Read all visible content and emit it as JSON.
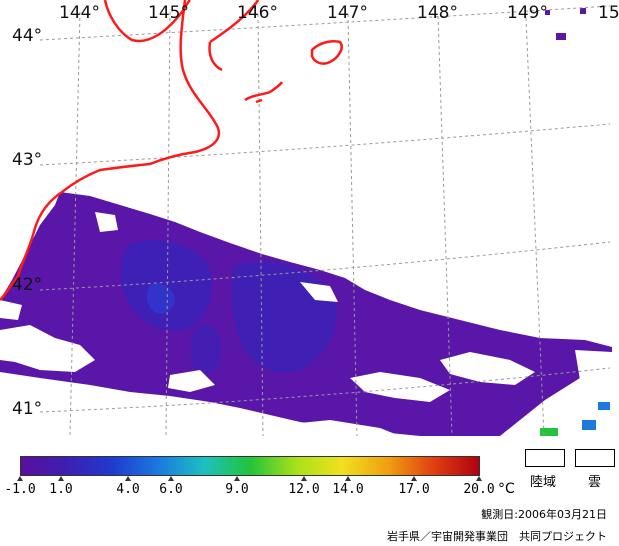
{
  "map": {
    "longitude_labels": [
      "144°",
      "145°",
      "146°",
      "147°",
      "148°",
      "149°",
      "15"
    ],
    "latitude_labels": [
      "44°",
      "43°",
      "42°",
      "41°"
    ],
    "colors": {
      "sst_base": "#5a16a8",
      "sst_deep": "#3a22b8",
      "coastline": "#ff1a1a",
      "grid": "#9a9a9a",
      "cloud": "#ffffff"
    }
  },
  "colorbar": {
    "tick_labels": [
      "-1.0",
      "1.0",
      "4.0",
      "6.0",
      "9.0",
      "12.0",
      "14.0",
      "17.0",
      "20.0"
    ],
    "unit": "°C",
    "gradient_colors": [
      "#5a0f9e",
      "#3d1fb0",
      "#1f3ad0",
      "#1a7ae0",
      "#1cc0c0",
      "#22c43a",
      "#a8e01a",
      "#f0e020",
      "#f0a010",
      "#e04010",
      "#b00010"
    ]
  },
  "legend": {
    "land_label": "陸域",
    "cloud_label": "雲"
  },
  "footer": {
    "observation_date": "観測日:2006年03月21日",
    "credit": "岩手県／宇宙開発事業団　共同プロジェクト"
  }
}
